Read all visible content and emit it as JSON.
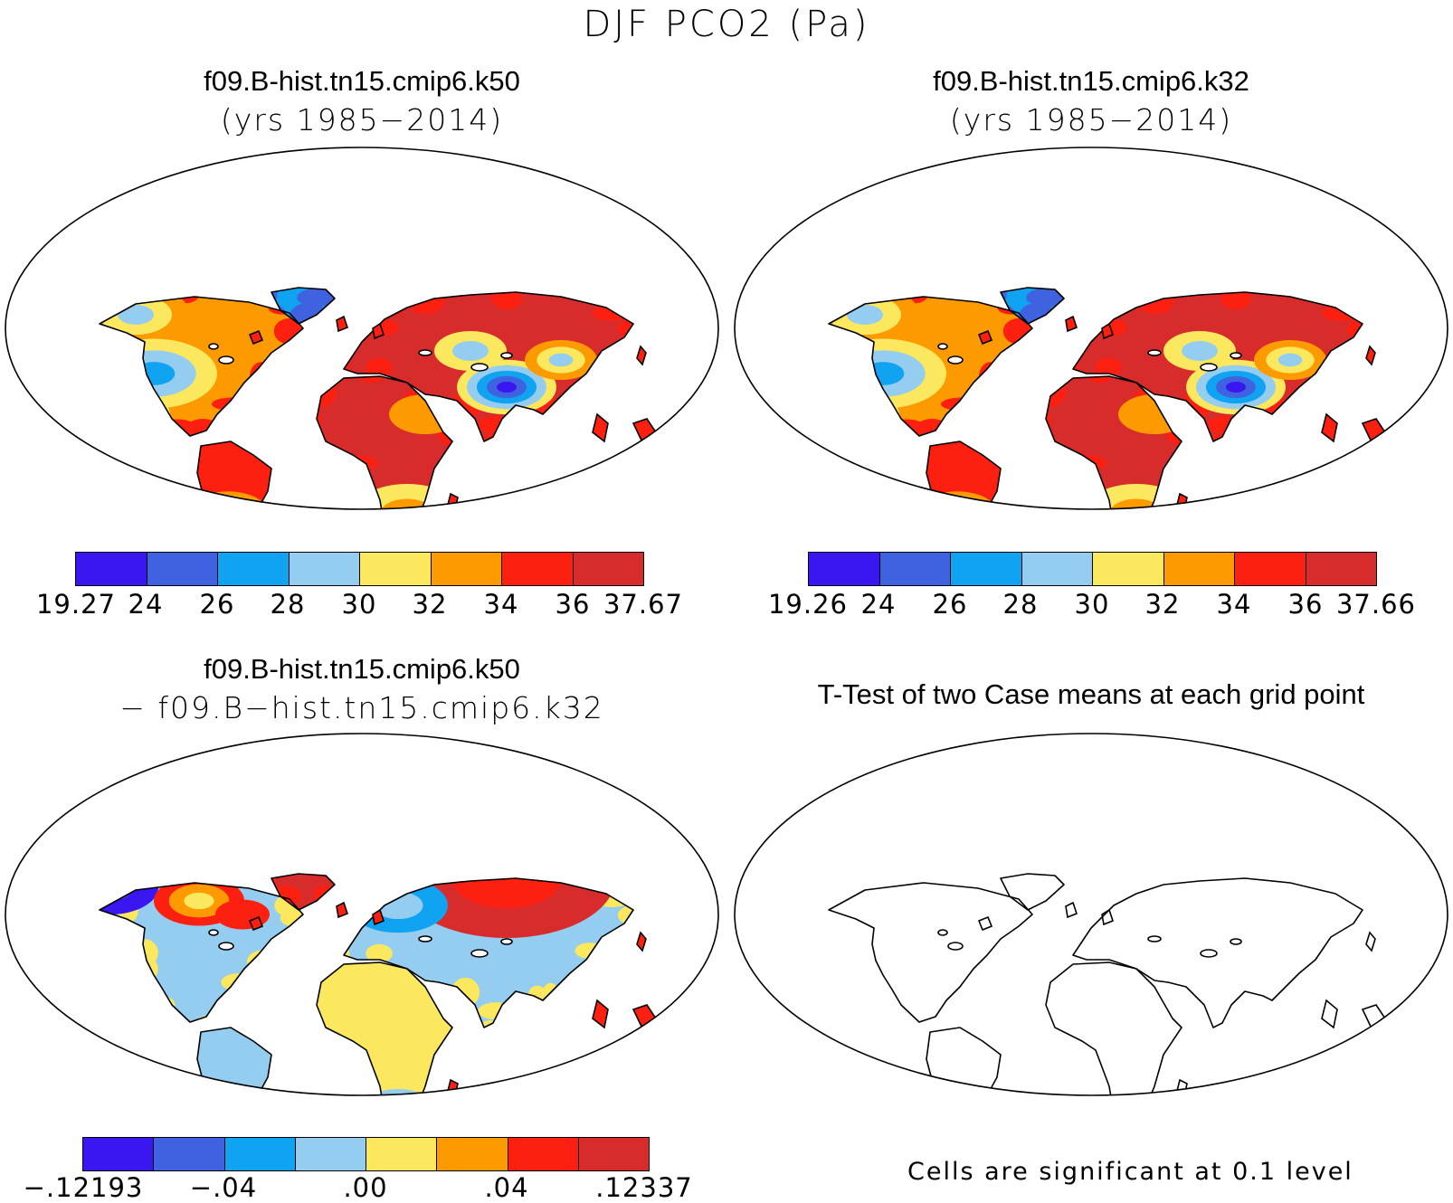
{
  "title": "DJF PCO2 (Pa)",
  "colors": {
    "palette8": [
      "#3a16f0",
      "#3f63e0",
      "#0fa3f2",
      "#94cdef",
      "#fbe85e",
      "#fd9a00",
      "#fd1f10",
      "#d82b2b"
    ],
    "ocean": "#ffffff",
    "outline": "#000000"
  },
  "panels": {
    "p1": {
      "title": "f09.B-hist.tn15.cmip6.k50",
      "subtitle": "(yrs 1985−2014)",
      "colorbar": {
        "labels": [
          "19.27",
          "24",
          "26",
          "28",
          "30",
          "32",
          "34",
          "36",
          "37.67"
        ]
      }
    },
    "p2": {
      "title": "f09.B-hist.tn15.cmip6.k32",
      "subtitle": "(yrs 1985−2014)",
      "colorbar": {
        "labels": [
          "19.26",
          "24",
          "26",
          "28",
          "30",
          "32",
          "34",
          "36",
          "37.66"
        ]
      }
    },
    "p3": {
      "title": "f09.B-hist.tn15.cmip6.k50",
      "subtitle": "− f09.B−hist.tn15.cmip6.k32",
      "colorbar": {
        "labels": [
          "−.12193",
          "−.04",
          ".00",
          ".04",
          ".12337"
        ]
      }
    },
    "p4": {
      "title": "T-Test of two Case means at each grid point",
      "note": "Cells are significant at 0.1 level"
    }
  }
}
